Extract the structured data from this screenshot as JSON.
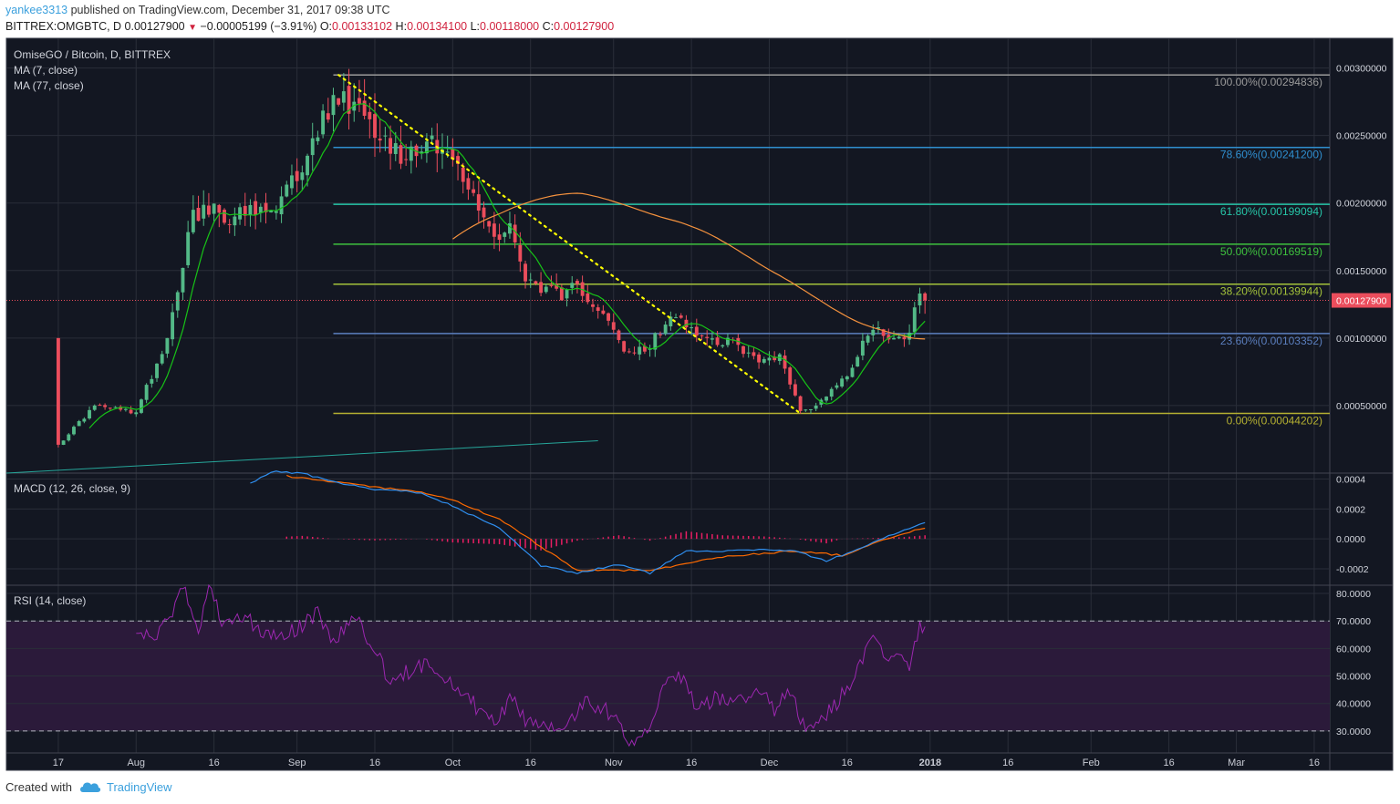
{
  "header": {
    "user": "yankee3313",
    "published": " published on TradingView.com, December 31, 2017 09:38 UTC",
    "symbol_line": "BITTREX:OMGBTC, D  0.00127900",
    "change": " −0.00005199 (−3.91%)",
    "o_label": " O:",
    "o_value": "0.00133102",
    "h_label": " H:",
    "h_value": "0.00134100",
    "l_label": " L:",
    "l_value": "0.00118000",
    "c_label": " C:",
    "c_value": "0.00127900"
  },
  "footer": {
    "created_with": "Created with",
    "brand": "TradingView"
  },
  "colors": {
    "background": "#131722",
    "grid": "#2a2e39",
    "up": "#53b987",
    "down": "#eb4d5c",
    "ma7": "#17c417",
    "ma77": "#f5923e",
    "macd": "#2f8ff0",
    "signal": "#ff6a00",
    "hist": "#e91e63",
    "rsi": "#9c27b0",
    "rsi_band": "#2b1a3a",
    "fib_trend": "#ffff00"
  },
  "chart_data": [
    {
      "type": "candlestick",
      "title": "OmiseGO / Bitcoin, D, BITTREX",
      "legend": [
        "MA (7, close)",
        "MA (77, close)"
      ],
      "x_tick_labels": [
        "17",
        "Aug",
        "16",
        "Sep",
        "16",
        "Oct",
        "16",
        "Nov",
        "16",
        "Dec",
        "16",
        "2018",
        "16",
        "Feb",
        "16",
        "Mar",
        "16"
      ],
      "x_range": [
        "2017-07-07",
        "2018-03-19"
      ],
      "y_tick_labels": [
        "0.00050000",
        "0.00100000",
        "0.00150000",
        "0.00200000",
        "0.00250000",
        "0.00300000"
      ],
      "ylim": [
        0.0,
        0.00322
      ],
      "last_price_label": "0.00127900",
      "anchors": [
        {
          "date": "2017-07-17",
          "close": 0.00021
        },
        {
          "date": "2017-07-24",
          "close": 0.0005
        },
        {
          "date": "2017-08-01",
          "close": 0.00045
        },
        {
          "date": "2017-08-07",
          "close": 0.001
        },
        {
          "date": "2017-08-12",
          "close": 0.00195
        },
        {
          "date": "2017-08-20",
          "close": 0.0019
        },
        {
          "date": "2017-08-28",
          "close": 0.00194
        },
        {
          "date": "2017-09-03",
          "close": 0.00235
        },
        {
          "date": "2017-09-08",
          "close": 0.0028
        },
        {
          "date": "2017-09-12",
          "close": 0.00275
        },
        {
          "date": "2017-09-15",
          "close": 0.00262
        },
        {
          "date": "2017-09-18",
          "close": 0.0025
        },
        {
          "date": "2017-09-22",
          "close": 0.00232
        },
        {
          "date": "2017-09-27",
          "close": 0.0025
        },
        {
          "date": "2017-09-30",
          "close": 0.00238
        },
        {
          "date": "2017-10-04",
          "close": 0.0021
        },
        {
          "date": "2017-10-09",
          "close": 0.00175
        },
        {
          "date": "2017-10-12",
          "close": 0.00185
        },
        {
          "date": "2017-10-15",
          "close": 0.00142
        },
        {
          "date": "2017-10-19",
          "close": 0.00138
        },
        {
          "date": "2017-10-22",
          "close": 0.00128
        },
        {
          "date": "2017-10-25",
          "close": 0.0014
        },
        {
          "date": "2017-10-30",
          "close": 0.00118
        },
        {
          "date": "2017-11-03",
          "close": 0.0009
        },
        {
          "date": "2017-11-07",
          "close": 0.0009
        },
        {
          "date": "2017-11-11",
          "close": 0.0011
        },
        {
          "date": "2017-11-14",
          "close": 0.00115
        },
        {
          "date": "2017-11-19",
          "close": 0.001
        },
        {
          "date": "2017-11-25",
          "close": 0.00095
        },
        {
          "date": "2017-11-29",
          "close": 0.00082
        },
        {
          "date": "2017-12-03",
          "close": 0.00088
        },
        {
          "date": "2017-12-07",
          "close": 0.00046
        },
        {
          "date": "2017-12-10",
          "close": 0.0005
        },
        {
          "date": "2017-12-14",
          "close": 0.00065
        },
        {
          "date": "2017-12-17",
          "close": 0.00078
        },
        {
          "date": "2017-12-19",
          "close": 0.00098
        },
        {
          "date": "2017-12-22",
          "close": 0.00108
        },
        {
          "date": "2017-12-25",
          "close": 0.001
        },
        {
          "date": "2017-12-28",
          "close": 0.00104
        },
        {
          "date": "2017-12-30",
          "close": 0.00133
        },
        {
          "date": "2017-12-31",
          "close": 0.001279
        }
      ],
      "fib_levels": [
        {
          "label": "100.00%(0.00294836)",
          "value": 0.00294836,
          "color": "#9b9b9b"
        },
        {
          "label": "78.60%(0.00241200)",
          "value": 0.002412,
          "color": "#2f8fd0"
        },
        {
          "label": "61.80%(0.00199094)",
          "value": 0.00199094,
          "color": "#26c6a8"
        },
        {
          "label": "50.00%(0.00169519)",
          "value": 0.00169519,
          "color": "#3ec23e"
        },
        {
          "label": "38.20%(0.00139944)",
          "value": 0.00139944,
          "color": "#a3c23a"
        },
        {
          "label": "23.60%(0.00103352)",
          "value": 0.00103352,
          "color": "#5b7fbf"
        },
        {
          "label": "0.00%(0.00044202)",
          "value": 0.00044202,
          "color": "#b5b031"
        }
      ],
      "fib_start_date": "2017-09-08",
      "trend_line": {
        "from": [
          "2017-09-09",
          0.00294836
        ],
        "to": [
          "2017-12-07",
          0.00044202
        ]
      },
      "green_line": {
        "from": [
          "2017-07-07",
          0.0
        ],
        "to": [
          "2017-10-29",
          0.00024
        ]
      }
    },
    {
      "type": "line",
      "title": "MACD (12, 26, close, 9)",
      "y_tick_labels": [
        "-0.0002",
        "0.0000",
        "0.0002",
        "0.0004"
      ],
      "ylim": [
        -0.00031,
        0.00044
      ],
      "start_date": "2017-08-23",
      "macd": [
        {
          "date": "2017-08-23",
          "value": 0.00037
        },
        {
          "date": "2017-08-27",
          "value": 0.00045
        },
        {
          "date": "2017-09-02",
          "value": 0.00044
        },
        {
          "date": "2017-09-08",
          "value": 0.00038
        },
        {
          "date": "2017-09-16",
          "value": 0.00033
        },
        {
          "date": "2017-09-25",
          "value": 0.00031
        },
        {
          "date": "2017-10-01",
          "value": 0.00022
        },
        {
          "date": "2017-10-10",
          "value": 7e-05
        },
        {
          "date": "2017-10-18",
          "value": -0.00018
        },
        {
          "date": "2017-10-25",
          "value": -0.00023
        },
        {
          "date": "2017-11-02",
          "value": -0.00017
        },
        {
          "date": "2017-11-08",
          "value": -0.00023
        },
        {
          "date": "2017-11-15",
          "value": -8e-05
        },
        {
          "date": "2017-11-22",
          "value": -8e-05
        },
        {
          "date": "2017-11-30",
          "value": -7e-05
        },
        {
          "date": "2017-12-06",
          "value": -8e-05
        },
        {
          "date": "2017-12-12",
          "value": -0.00015
        },
        {
          "date": "2017-12-20",
          "value": -4e-05
        },
        {
          "date": "2017-12-27",
          "value": 6e-05
        },
        {
          "date": "2017-12-31",
          "value": 0.00011
        }
      ],
      "signal": [
        {
          "date": "2017-08-30",
          "value": 0.00042
        },
        {
          "date": "2017-09-08",
          "value": 0.00038
        },
        {
          "date": "2017-09-25",
          "value": 0.00031
        },
        {
          "date": "2017-10-01",
          "value": 0.00026
        },
        {
          "date": "2017-10-10",
          "value": 0.00013
        },
        {
          "date": "2017-10-25",
          "value": -0.00021
        },
        {
          "date": "2017-11-08",
          "value": -0.00021
        },
        {
          "date": "2017-11-22",
          "value": -0.00012
        },
        {
          "date": "2017-12-06",
          "value": -8e-05
        },
        {
          "date": "2017-12-15",
          "value": -0.00011
        },
        {
          "date": "2017-12-27",
          "value": 4e-05
        },
        {
          "date": "2017-12-31",
          "value": 7e-05
        }
      ]
    },
    {
      "type": "line",
      "title": "RSI (14, close)",
      "y_tick_labels": [
        "30.0000",
        "40.0000",
        "50.0000",
        "60.0000",
        "70.0000",
        "80.0000"
      ],
      "ylim": [
        22.0,
        83.0
      ],
      "band": [
        30,
        70
      ],
      "rsi": [
        {
          "date": "2017-08-01",
          "value": 63
        },
        {
          "date": "2017-08-06",
          "value": 66
        },
        {
          "date": "2017-08-10",
          "value": 82
        },
        {
          "date": "2017-08-13",
          "value": 67
        },
        {
          "date": "2017-08-15",
          "value": 82
        },
        {
          "date": "2017-08-18",
          "value": 68
        },
        {
          "date": "2017-08-22",
          "value": 72
        },
        {
          "date": "2017-08-26",
          "value": 64
        },
        {
          "date": "2017-08-31",
          "value": 66
        },
        {
          "date": "2017-09-05",
          "value": 73
        },
        {
          "date": "2017-09-08",
          "value": 62
        },
        {
          "date": "2017-09-12",
          "value": 72
        },
        {
          "date": "2017-09-16",
          "value": 60
        },
        {
          "date": "2017-09-19",
          "value": 47
        },
        {
          "date": "2017-09-22",
          "value": 51
        },
        {
          "date": "2017-09-27",
          "value": 55
        },
        {
          "date": "2017-10-01",
          "value": 47
        },
        {
          "date": "2017-10-05",
          "value": 40
        },
        {
          "date": "2017-10-09",
          "value": 32
        },
        {
          "date": "2017-10-12",
          "value": 42
        },
        {
          "date": "2017-10-15",
          "value": 34
        },
        {
          "date": "2017-10-19",
          "value": 32
        },
        {
          "date": "2017-10-23",
          "value": 33
        },
        {
          "date": "2017-10-27",
          "value": 41
        },
        {
          "date": "2017-11-01",
          "value": 36
        },
        {
          "date": "2017-11-04",
          "value": 27
        },
        {
          "date": "2017-11-07",
          "value": 29
        },
        {
          "date": "2017-11-11",
          "value": 46
        },
        {
          "date": "2017-11-14",
          "value": 50
        },
        {
          "date": "2017-11-17",
          "value": 38
        },
        {
          "date": "2017-11-21",
          "value": 42
        },
        {
          "date": "2017-11-25",
          "value": 41
        },
        {
          "date": "2017-11-29",
          "value": 44
        },
        {
          "date": "2017-12-02",
          "value": 38
        },
        {
          "date": "2017-12-05",
          "value": 44
        },
        {
          "date": "2017-12-08",
          "value": 30
        },
        {
          "date": "2017-12-12",
          "value": 36
        },
        {
          "date": "2017-12-16",
          "value": 45
        },
        {
          "date": "2017-12-19",
          "value": 55
        },
        {
          "date": "2017-12-21",
          "value": 64
        },
        {
          "date": "2017-12-24",
          "value": 56
        },
        {
          "date": "2017-12-26",
          "value": 60
        },
        {
          "date": "2017-12-28",
          "value": 54
        },
        {
          "date": "2017-12-30",
          "value": 68
        },
        {
          "date": "2017-12-31",
          "value": 65
        }
      ]
    }
  ]
}
